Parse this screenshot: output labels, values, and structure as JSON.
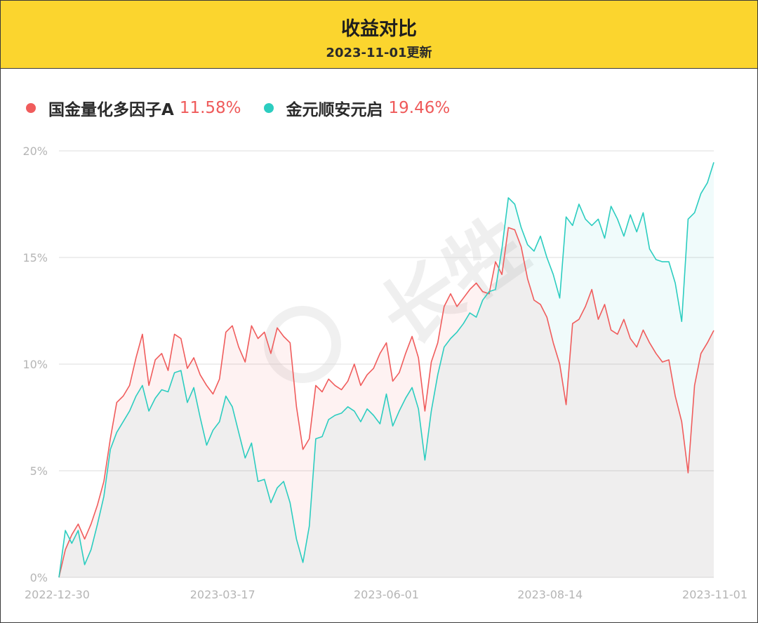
{
  "header": {
    "title": "收益对比",
    "subtitle": "2023-11-01更新"
  },
  "legend": [
    {
      "name": "国金量化多因子A",
      "value": "11.58%",
      "color": "#f05c5c"
    },
    {
      "name": "金元顺安元启",
      "value": "19.46%",
      "color": "#2ccdc0"
    }
  ],
  "watermark": "长牲",
  "chart_data": {
    "type": "line",
    "title": "收益对比",
    "xlabel": "",
    "ylabel": "",
    "ylim": [
      0,
      20
    ],
    "grid": true,
    "legend_position": "top-left",
    "x_tick_labels": [
      "2022-12-30",
      "2023-03-17",
      "2023-06-01",
      "2023-08-14",
      "2023-11-01"
    ],
    "y_tick_values": [
      0,
      5,
      10,
      15,
      20
    ],
    "y_tick_labels": [
      "0%",
      "5%",
      "10%",
      "15%",
      "20%"
    ],
    "series": [
      {
        "name": "国金量化多因子A",
        "color": "#f05c5c",
        "values": [
          0.0,
          1.3,
          2.0,
          2.5,
          1.8,
          2.5,
          3.4,
          4.5,
          6.5,
          8.2,
          8.5,
          9.0,
          10.3,
          11.4,
          9.0,
          10.2,
          10.5,
          9.7,
          11.4,
          11.2,
          9.8,
          10.3,
          9.5,
          9.0,
          8.6,
          9.3,
          11.5,
          11.8,
          10.8,
          10.1,
          11.8,
          11.2,
          11.5,
          10.5,
          11.7,
          11.3,
          11.0,
          8.0,
          6.0,
          6.5,
          9.0,
          8.7,
          9.3,
          9.0,
          8.8,
          9.2,
          10.0,
          9.0,
          9.5,
          9.8,
          10.5,
          11.0,
          9.2,
          9.6,
          10.5,
          11.3,
          10.3,
          7.8,
          10.1,
          11.0,
          12.7,
          13.3,
          12.7,
          13.1,
          13.5,
          13.8,
          13.4,
          13.3,
          14.8,
          14.2,
          16.4,
          16.3,
          15.5,
          14.0,
          13.0,
          12.8,
          12.2,
          11.0,
          10.0,
          8.1,
          11.9,
          12.1,
          12.7,
          13.5,
          12.1,
          12.8,
          11.6,
          11.4,
          12.1,
          11.2,
          10.8,
          11.6,
          11.0,
          10.5,
          10.1,
          10.2,
          8.5,
          7.3,
          4.9,
          9.0,
          10.5,
          11.0,
          11.58
        ]
      },
      {
        "name": "金元顺安元启",
        "color": "#2ccdc0",
        "values": [
          0.0,
          2.2,
          1.6,
          2.2,
          0.6,
          1.3,
          2.5,
          3.8,
          6.0,
          6.8,
          7.3,
          7.8,
          8.5,
          9.0,
          7.8,
          8.4,
          8.8,
          8.7,
          9.6,
          9.7,
          8.2,
          8.9,
          7.5,
          6.2,
          6.9,
          7.3,
          8.5,
          8.0,
          6.8,
          5.6,
          6.3,
          4.5,
          4.6,
          3.5,
          4.2,
          4.5,
          3.5,
          1.8,
          0.7,
          2.4,
          6.5,
          6.6,
          7.4,
          7.6,
          7.7,
          8.0,
          7.8,
          7.3,
          7.9,
          7.6,
          7.2,
          8.6,
          7.1,
          7.8,
          8.4,
          8.9,
          7.9,
          5.5,
          7.8,
          9.5,
          10.8,
          11.2,
          11.5,
          11.9,
          12.4,
          12.2,
          13.0,
          13.4,
          13.5,
          15.4,
          17.8,
          17.5,
          16.4,
          15.6,
          15.3,
          16.0,
          15.0,
          14.2,
          13.1,
          16.9,
          16.5,
          17.5,
          16.8,
          16.5,
          16.8,
          15.9,
          17.4,
          16.8,
          16.0,
          17.0,
          16.2,
          17.1,
          15.4,
          14.9,
          14.8,
          14.8,
          13.8,
          12.0,
          16.8,
          17.1,
          18.0,
          18.5,
          19.46
        ]
      }
    ]
  }
}
